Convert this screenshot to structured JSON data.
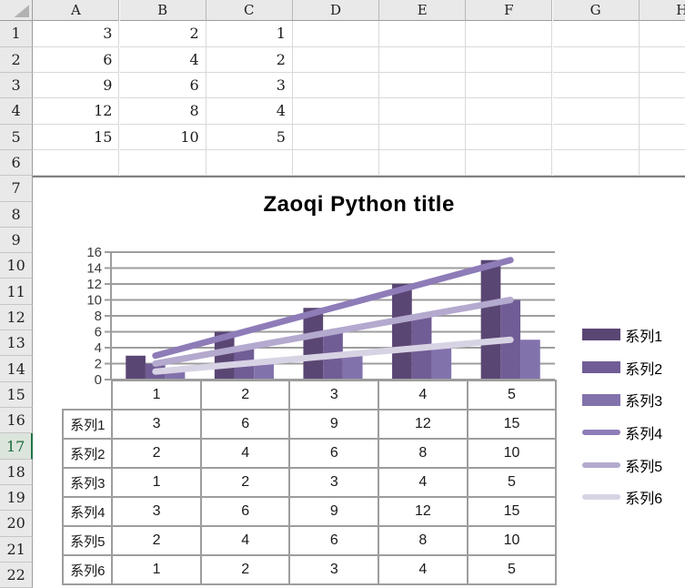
{
  "spreadsheet": {
    "column_headers": [
      "A",
      "B",
      "C",
      "D",
      "E",
      "F",
      "G",
      "H"
    ],
    "row_headers": [
      "1",
      "2",
      "3",
      "4",
      "5",
      "6",
      "7",
      "8",
      "9",
      "10",
      "11",
      "12",
      "13",
      "14",
      "15",
      "16",
      "17",
      "18",
      "19",
      "20",
      "21",
      "22"
    ],
    "active_row": "17",
    "rows": [
      [
        "3",
        "2",
        "1"
      ],
      [
        "6",
        "4",
        "2"
      ],
      [
        "9",
        "6",
        "3"
      ],
      [
        "12",
        "8",
        "4"
      ],
      [
        "15",
        "10",
        "5"
      ]
    ]
  },
  "ui": {
    "active_row_accent": "#217346",
    "chart_border_color": "#7f7f7f",
    "chart_grid_color": "#9d9d9d"
  },
  "chart_data": {
    "type": "combo",
    "title": "Zaoqi Python title",
    "categories": [
      "1",
      "2",
      "3",
      "4",
      "5"
    ],
    "series": [
      {
        "name": "系列1",
        "type": "bar",
        "values": [
          3,
          6,
          9,
          12,
          15
        ],
        "color": "#5a4673"
      },
      {
        "name": "系列2",
        "type": "bar",
        "values": [
          2,
          4,
          6,
          8,
          10
        ],
        "color": "#705d96"
      },
      {
        "name": "系列3",
        "type": "bar",
        "values": [
          1,
          2,
          3,
          4,
          5
        ],
        "color": "#8272ac"
      },
      {
        "name": "系列4",
        "type": "line",
        "values": [
          3,
          6,
          9,
          12,
          15
        ],
        "color": "#8e7cb8"
      },
      {
        "name": "系列5",
        "type": "line",
        "values": [
          2,
          4,
          6,
          8,
          10
        ],
        "color": "#b4a9ce"
      },
      {
        "name": "系列6",
        "type": "line",
        "values": [
          1,
          2,
          3,
          4,
          5
        ],
        "color": "#d8d3e4"
      }
    ],
    "ylim": [
      0,
      16
    ],
    "ytick_step": 2,
    "xlabel": "",
    "ylabel": "",
    "grid": true,
    "legend_position": "right",
    "data_table": true
  }
}
